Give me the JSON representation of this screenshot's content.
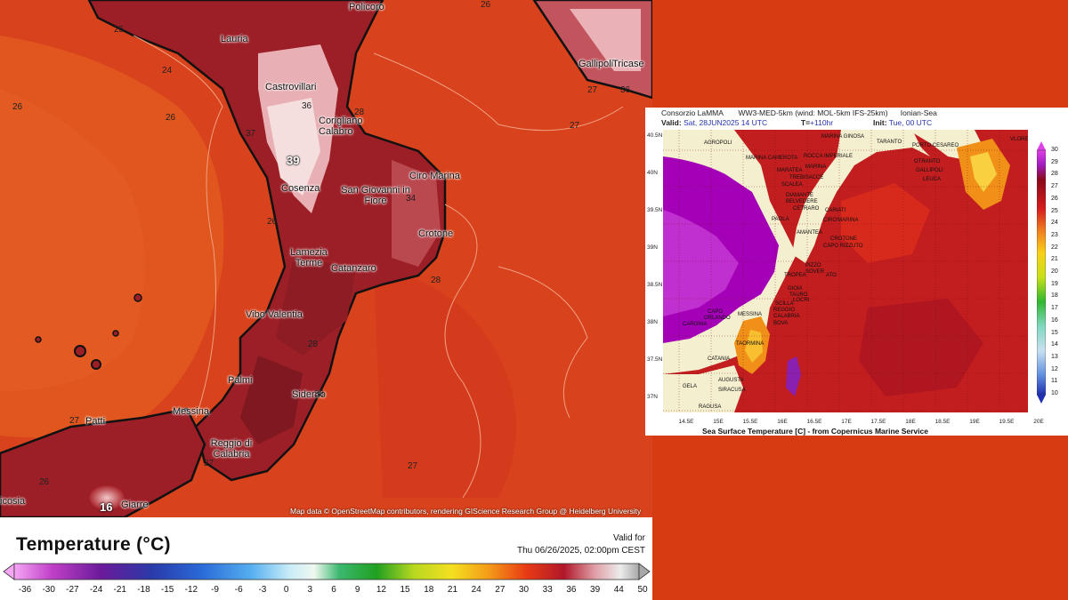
{
  "left_map": {
    "cities": [
      {
        "name": "Policoro"
      },
      {
        "name": "Gallipoli"
      },
      {
        "name": "Lauria"
      },
      {
        "name": "Tricase"
      },
      {
        "name": "Castrovillari"
      },
      {
        "name": "Corigliano Calabro"
      },
      {
        "name": "Ciro Marina"
      },
      {
        "name": "Cosenza"
      },
      {
        "name": "San Giovanni in Fiore"
      },
      {
        "name": "Crotone"
      },
      {
        "name": "Lamezia Terme"
      },
      {
        "name": "Catanzaro"
      },
      {
        "name": "Vibo Valentia"
      },
      {
        "name": "Palmi"
      },
      {
        "name": "Siderno"
      },
      {
        "name": "Patti"
      },
      {
        "name": "Messina"
      },
      {
        "name": "Reggio di Calabria"
      },
      {
        "name": "icosia"
      },
      {
        "name": "Giarre"
      }
    ],
    "isolines": [
      "25",
      "24",
      "26",
      "26",
      "26",
      "27",
      "28",
      "36",
      "36",
      "37",
      "38",
      "34",
      "28",
      "27",
      "27",
      "26",
      "27",
      "28",
      "26",
      "27"
    ],
    "max_labels": [
      "39",
      "16"
    ],
    "attribution": "Map data © OpenStreetMap contributors, rendering GIScience Research Group @ Heidelberg University"
  },
  "legend": {
    "title": "Temperature (°C)",
    "valid_for": "Valid for",
    "valid_date": "Thu 06/26/2025, 02:00pm CEST",
    "ticks": [
      "-36",
      "-30",
      "-27",
      "-24",
      "-21",
      "-18",
      "-15",
      "-12",
      "-9",
      "-6",
      "-3",
      "0",
      "3",
      "6",
      "9",
      "12",
      "15",
      "18",
      "21",
      "24",
      "27",
      "30",
      "33",
      "36",
      "39",
      "44",
      "50"
    ]
  },
  "inset": {
    "header_left": "Consorzio LaMMA",
    "header_mid": "WW3-MED-5km (wind: MOL-5km IFS-25km)",
    "header_right": "Ionian-Sea",
    "valid_label": "Valid:",
    "valid_value": "Sat, 28JUN2025  14 UTC",
    "lead_label": "T=",
    "lead_value": "+110hr",
    "init_label": "Init:",
    "init_value": "Tue, 00 UTC",
    "latitudes": [
      "40.5N",
      "40N",
      "39.5N",
      "39N",
      "38.5N",
      "38N",
      "37.5N",
      "37N"
    ],
    "longitudes": [
      "14.5E",
      "15E",
      "15.5E",
      "16E",
      "16.5E",
      "17E",
      "17.5E",
      "18E",
      "18.5E",
      "19E",
      "19.5E",
      "20E"
    ],
    "places": [
      "AGROPOLI",
      "MARINA CAMEROTA",
      "ROCCA IMPERIALE",
      "MARINA",
      "MARATEA",
      "TREBISACCE",
      "SCALEA",
      "DIAMANTE",
      "BELVEDERE",
      "CETRARO",
      "CARIATI",
      "PAOLA",
      "CIRO'MARINA",
      "AMANTEA",
      "CROTONE",
      "CAPO RIZZUTO",
      "PIZZO",
      "SOVER",
      "ATO",
      "TROPEA",
      "GIOIA",
      "TAURO",
      "LOCRI",
      "SCILLA",
      "REGGIO",
      "CALABRIA",
      "CAPO",
      "ORLANDO",
      "MESSINA",
      "BOVA",
      "CARONIA",
      "TAORMINA",
      "CATANIA",
      "AUGUSTA",
      "SIRACUSA",
      "GELA",
      "RAGUSA",
      "MARINA GINOSA",
      "TARANTO",
      "PORTO CESAREO",
      "OTRANTO",
      "GALLIPOLI",
      "LEUCA",
      "VLORE"
    ],
    "colorbar_labels": [
      "30",
      "29",
      "28",
      "27",
      "26",
      "25",
      "24",
      "23",
      "22",
      "21",
      "20",
      "19",
      "18",
      "17",
      "16",
      "15",
      "14",
      "13",
      "12",
      "11",
      "10"
    ],
    "caption": "Sea Surface Temperature [C] - from Copernicus Marine Service"
  }
}
